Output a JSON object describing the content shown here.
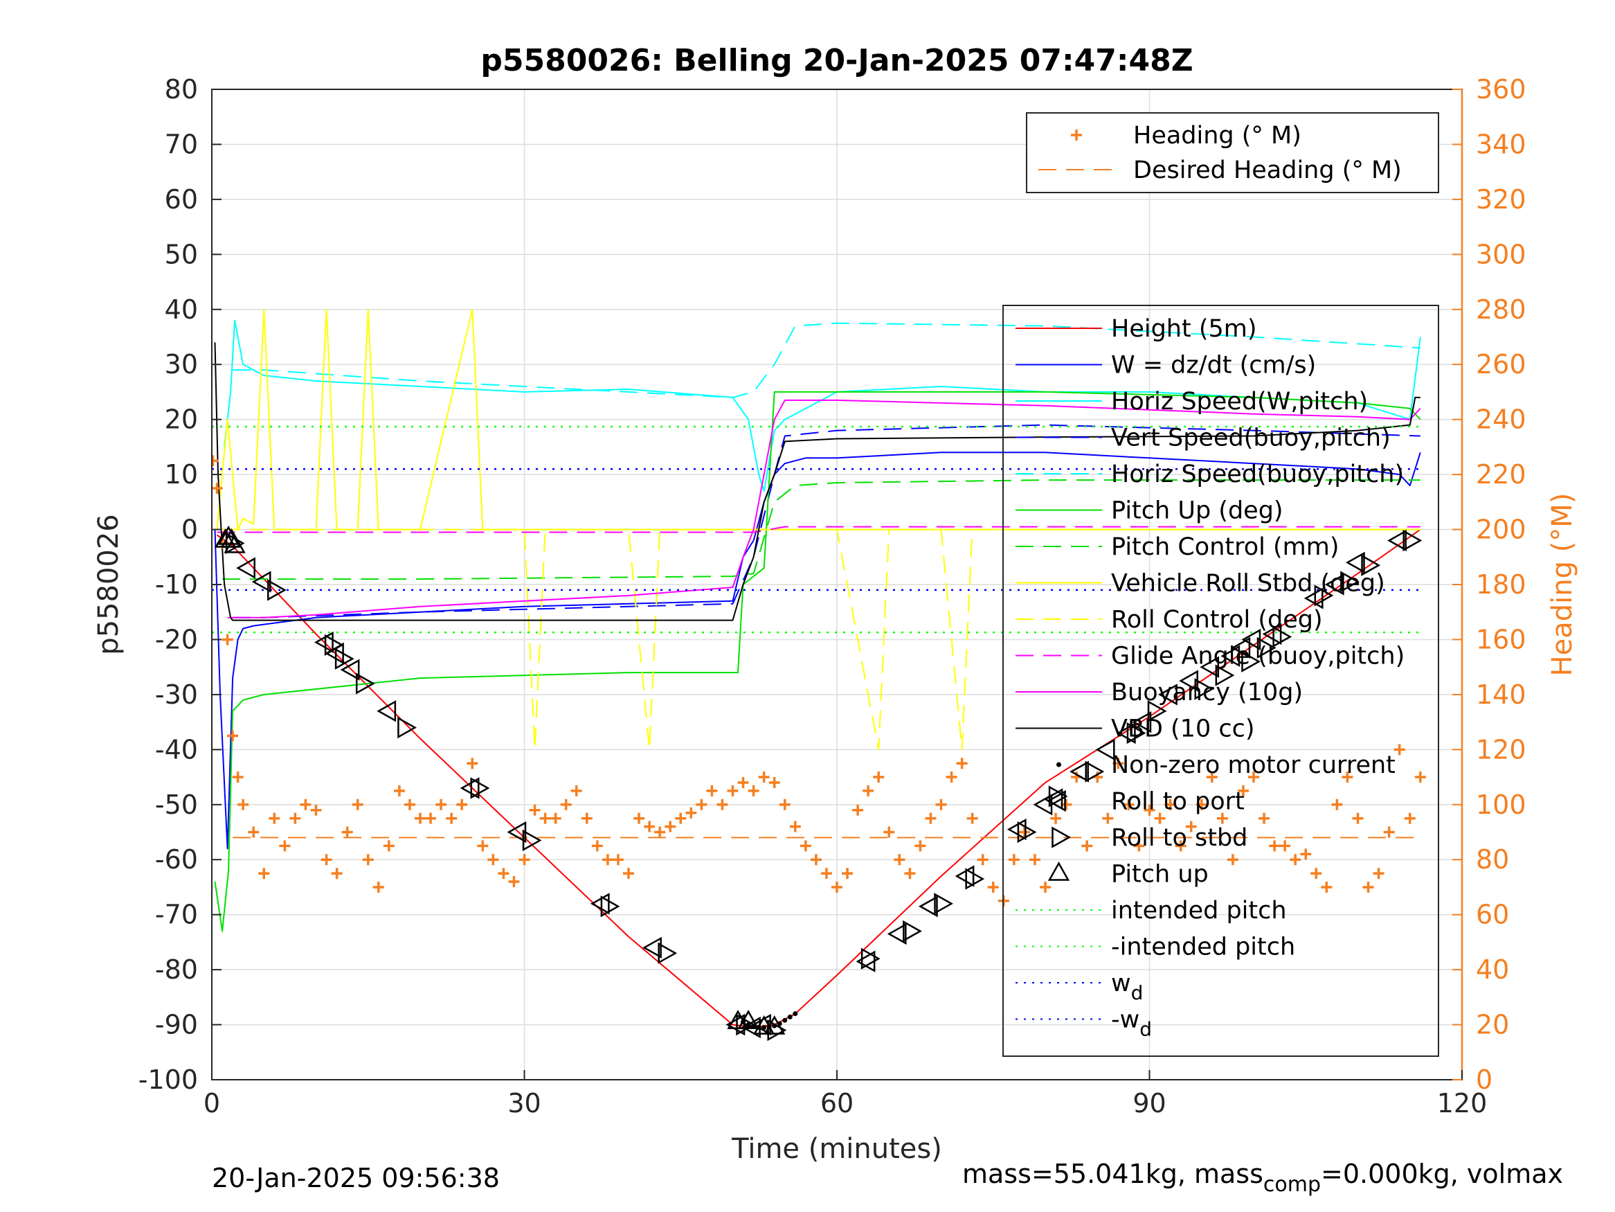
{
  "chart_data": {
    "type": "line",
    "title": "p5580026: Belling 20-Jan-2025 07:47:48Z",
    "xlabel": "Time (minutes)",
    "ylabel": "p5580026",
    "ylabel_right": "Heading (°M)",
    "xlim": [
      0,
      120
    ],
    "ylim": [
      -100,
      80
    ],
    "ylim_right": [
      0,
      360
    ],
    "xticks": [
      "0",
      "30",
      "60",
      "90",
      "120"
    ],
    "yticks": [
      "80",
      "70",
      "60",
      "50",
      "40",
      "30",
      "20",
      "10",
      "0",
      "-10",
      "-20",
      "-30",
      "-40",
      "-50",
      "-60",
      "-70",
      "-80",
      "-90",
      "-100"
    ],
    "yticks_right": [
      "360",
      "340",
      "320",
      "300",
      "280",
      "260",
      "240",
      "220",
      "200",
      "180",
      "160",
      "140",
      "120",
      "100",
      "80",
      "60",
      "40",
      "20",
      "0"
    ],
    "grid": true,
    "legend_heading": [
      {
        "label": "Heading (° M)",
        "color": "#f57f20",
        "style": "plus"
      },
      {
        "label": "Desired Heading (° M)",
        "color": "#f57f20",
        "style": "dashed"
      }
    ],
    "legend_main": [
      {
        "label": "Height (5m)",
        "color": "#ff0000",
        "style": "solid"
      },
      {
        "label": "W = dz/dt (cm/s)",
        "color": "#0000ff",
        "style": "solid"
      },
      {
        "label": "Horiz Speed(W,pitch)",
        "color": "#00ffff",
        "style": "solid"
      },
      {
        "label": "Vert Speed(buoy,pitch)",
        "color": "#0000ff",
        "style": "dashed"
      },
      {
        "label": "Horiz Speed(buoy,pitch)",
        "color": "#00ffff",
        "style": "dashed"
      },
      {
        "label": "Pitch Up (deg)",
        "color": "#00e000",
        "style": "solid"
      },
      {
        "label": "Pitch Control (mm)",
        "color": "#00e000",
        "style": "dashed"
      },
      {
        "label": "Vehicle Roll Stbd (deg)",
        "color": "#ffff00",
        "style": "solid"
      },
      {
        "label": "Roll Control (deg)",
        "color": "#ffff00",
        "style": "dashed"
      },
      {
        "label": "Glide Angle (buoy,pitch)",
        "color": "#ff00ff",
        "style": "dashed"
      },
      {
        "label": "Buoyancy (10g)",
        "color": "#ff00ff",
        "style": "solid"
      },
      {
        "label": "VBD (10 cc)",
        "color": "#000000",
        "style": "solid"
      },
      {
        "label": "Non-zero motor current",
        "color": "#000000",
        "style": "dot"
      },
      {
        "label": "Roll to port",
        "color": "#000000",
        "style": "tri-left"
      },
      {
        "label": "Roll to stbd",
        "color": "#000000",
        "style": "tri-right"
      },
      {
        "label": "Pitch up",
        "color": "#000000",
        "style": "tri-up"
      },
      {
        "label": "intended pitch",
        "color": "#00ff00",
        "style": "dotted"
      },
      {
        "label": "-intended pitch",
        "color": "#00ff00",
        "style": "dotted"
      },
      {
        "label": "w",
        "sub": "d",
        "color": "#0000ff",
        "style": "dotted"
      },
      {
        "label": "-w",
        "sub": "d",
        "color": "#0000ff",
        "style": "dotted"
      }
    ],
    "series": [
      {
        "name": "Height (5m)",
        "axis": "left",
        "color": "#ff0000",
        "style": "solid",
        "x": [
          0.5,
          2,
          5,
          10,
          20,
          30,
          40,
          50,
          52,
          54,
          56,
          60,
          70,
          80,
          90,
          100,
          110,
          116
        ],
        "y": [
          -1,
          -3,
          -9,
          -19,
          -38,
          -56,
          -74,
          -90,
          -90.5,
          -90,
          -88,
          -81,
          -63,
          -46,
          -34,
          -21,
          -8,
          0
        ]
      },
      {
        "name": "W = dz/dt (cm/s)",
        "axis": "left",
        "color": "#0000ff",
        "style": "solid",
        "x": [
          0.3,
          0.8,
          1.5,
          2.0,
          2.5,
          3,
          4,
          6,
          10,
          20,
          30,
          40,
          50,
          51,
          52,
          53,
          54,
          55,
          57,
          60,
          70,
          80,
          90,
          100,
          110,
          114,
          115,
          116
        ],
        "y": [
          0,
          -30,
          -58,
          -27,
          -20,
          -18,
          -17.5,
          -17,
          -16,
          -15,
          -14,
          -13.5,
          -13,
          -5,
          -2,
          5,
          10,
          12,
          13,
          13,
          14,
          14,
          13,
          12,
          11,
          10,
          8,
          14
        ]
      },
      {
        "name": "Horiz Speed(W,pitch)",
        "axis": "left",
        "color": "#00ffff",
        "style": "solid",
        "x": [
          1.2,
          1.8,
          2.2,
          3,
          5,
          10,
          20,
          30,
          40,
          50,
          51.5,
          52.5,
          53,
          54,
          55,
          60,
          70,
          80,
          90,
          100,
          110,
          115,
          116
        ],
        "y": [
          15,
          25,
          38,
          30,
          28,
          27,
          26,
          25,
          25.5,
          24,
          20,
          10,
          7,
          18,
          20,
          25,
          26,
          25,
          25,
          24,
          23,
          20,
          35
        ]
      },
      {
        "name": "Vert Speed(buoy,pitch)",
        "axis": "left",
        "color": "#0000ff",
        "style": "dashed",
        "x": [
          2,
          5,
          20,
          50,
          52,
          54,
          55,
          60,
          80,
          100,
          116
        ],
        "y": [
          -16,
          -16,
          -15,
          -13.5,
          -5,
          10,
          17,
          18,
          19,
          18,
          17
        ]
      },
      {
        "name": "Horiz Speed(buoy,pitch)",
        "axis": "left",
        "color": "#00ffff",
        "style": "dashed",
        "x": [
          2,
          5,
          20,
          50,
          52,
          54,
          56,
          60,
          80,
          100,
          116
        ],
        "y": [
          29,
          29,
          27,
          24,
          25,
          30,
          37,
          37.5,
          37,
          35,
          33
        ]
      },
      {
        "name": "Pitch Up (deg)",
        "axis": "left",
        "color": "#00e000",
        "style": "solid",
        "x": [
          0.3,
          1,
          1.6,
          2,
          3,
          5,
          20,
          40,
          50.5,
          51,
          53,
          54,
          60,
          80,
          100,
          110,
          115,
          116
        ],
        "y": [
          -64,
          -73,
          -62,
          -33,
          -31,
          -30,
          -27,
          -26,
          -26,
          -10,
          -7,
          25,
          25,
          25,
          24,
          23,
          22,
          20
        ]
      },
      {
        "name": "Pitch Control (mm)",
        "axis": "left",
        "color": "#00e000",
        "style": "dashed",
        "x": [
          1,
          5,
          20,
          50,
          52,
          54,
          56,
          60,
          80,
          100,
          116
        ],
        "y": [
          -9,
          -9,
          -9,
          -8.5,
          -8,
          5,
          8,
          8.5,
          9,
          9,
          9
        ]
      },
      {
        "name": "Vehicle Roll Stbd (deg)",
        "axis": "left",
        "color": "#ffff00",
        "style": "solid",
        "x": [
          0.5,
          1.5,
          2,
          2.5,
          3,
          4,
          5,
          6,
          10,
          11,
          12,
          14,
          15,
          16,
          17,
          20,
          25,
          26,
          27,
          30,
          40,
          50,
          60,
          70,
          80,
          90,
          100,
          110,
          116
        ],
        "y": [
          0,
          20,
          10,
          0,
          2,
          1,
          40,
          0,
          0,
          40,
          0,
          0,
          40,
          0,
          0,
          0,
          40,
          0,
          0,
          0,
          0,
          0,
          0,
          0,
          0,
          0,
          0,
          0,
          0
        ]
      },
      {
        "name": "Roll Control (deg)",
        "axis": "left",
        "color": "#ffff00",
        "style": "dashed",
        "x": [
          1,
          20,
          30,
          31,
          32,
          40,
          42,
          43,
          50,
          60,
          64,
          65,
          70,
          72,
          73,
          80,
          100,
          116
        ],
        "y": [
          0,
          0,
          0,
          -40,
          0,
          0,
          -40,
          0,
          0,
          0,
          -40,
          0,
          0,
          -40,
          0,
          0,
          0,
          0
        ]
      },
      {
        "name": "Glide Angle (buoy,pitch)",
        "axis": "left",
        "color": "#ff00ff",
        "style": "dashed",
        "x": [
          0.5,
          50,
          52,
          55,
          60,
          116
        ],
        "y": [
          -0.5,
          -0.5,
          -0.5,
          0.5,
          0.5,
          0.5
        ]
      },
      {
        "name": "Buoyancy (10g)",
        "axis": "left",
        "color": "#ff00ff",
        "style": "solid",
        "x": [
          1.5,
          5,
          10,
          20,
          30,
          40,
          50,
          51,
          52,
          53,
          54,
          55,
          60,
          80,
          100,
          110,
          115,
          116
        ],
        "y": [
          -16,
          -16,
          -15.5,
          -14,
          -13,
          -12,
          -10.5,
          -5,
          0,
          10,
          20,
          23.5,
          23.5,
          22.5,
          21,
          20.5,
          20,
          22
        ]
      },
      {
        "name": "VBD (10 cc)",
        "axis": "left",
        "color": "#000000",
        "style": "solid",
        "x": [
          0.3,
          0.6,
          1.2,
          1.8,
          2,
          10,
          30,
          40,
          50,
          51,
          52,
          53,
          54,
          55,
          60,
          80,
          100,
          110,
          115,
          115.5,
          116
        ],
        "y": [
          34,
          10,
          -10,
          -16,
          -16.5,
          -16.5,
          -16.5,
          -16.5,
          -16.5,
          -10,
          -5,
          5,
          10,
          16,
          16.5,
          16.8,
          17,
          18,
          19,
          24,
          24
        ]
      },
      {
        "name": "intended pitch",
        "axis": "left",
        "color": "#00ff00",
        "style": "dotted",
        "x": [
          0,
          116
        ],
        "y": [
          18.7,
          18.7
        ]
      },
      {
        "name": "-intended pitch",
        "axis": "left",
        "color": "#00ff00",
        "style": "dotted",
        "x": [
          0,
          116
        ],
        "y": [
          -18.7,
          -18.7
        ]
      },
      {
        "name": "w_d",
        "axis": "left",
        "color": "#0000ff",
        "style": "dotted",
        "x": [
          0,
          116
        ],
        "y": [
          11,
          11
        ]
      },
      {
        "name": "-w_d",
        "axis": "left",
        "color": "#0000ff",
        "style": "dotted",
        "x": [
          0,
          116
        ],
        "y": [
          -11,
          -11
        ]
      },
      {
        "name": "Desired Heading (° M)",
        "axis": "right",
        "color": "#f57f20",
        "style": "dashed",
        "x": [
          2,
          116
        ],
        "y": [
          88,
          88
        ]
      },
      {
        "name": "Heading (° M)",
        "axis": "right",
        "color": "#f57f20",
        "style": "plus",
        "x": [
          0.1,
          0.5,
          1,
          1.5,
          2,
          2.5,
          3,
          4,
          5,
          6,
          7,
          8,
          9,
          10,
          11,
          12,
          13,
          14,
          15,
          16,
          17,
          18,
          19,
          20,
          21,
          22,
          23,
          24,
          25,
          26,
          27,
          28,
          29,
          30,
          31,
          32,
          33,
          34,
          35,
          36,
          37,
          38,
          39,
          40,
          41,
          42,
          43,
          44,
          45,
          46,
          47,
          48,
          49,
          50,
          51,
          52,
          53,
          54,
          55,
          56,
          57,
          58,
          59,
          60,
          61,
          62,
          63,
          64,
          65,
          66,
          67,
          68,
          69,
          70,
          71,
          72,
          73,
          74,
          75,
          76,
          77,
          78,
          79,
          80,
          81,
          82,
          83,
          84,
          85,
          86,
          87,
          88,
          89,
          90,
          91,
          92,
          93,
          94,
          95,
          96,
          97,
          98,
          99,
          100,
          101,
          102,
          103,
          104,
          105,
          106,
          107,
          108,
          109,
          110,
          111,
          112,
          113,
          114,
          115,
          116
        ],
        "y": [
          225,
          215,
          195,
          160,
          125,
          110,
          100,
          90,
          75,
          95,
          85,
          95,
          100,
          98,
          80,
          75,
          90,
          100,
          80,
          70,
          85,
          105,
          100,
          95,
          95,
          100,
          95,
          100,
          115,
          85,
          80,
          75,
          72,
          80,
          98,
          95,
          95,
          100,
          105,
          95,
          85,
          80,
          80,
          75,
          95,
          92,
          90,
          92,
          95,
          97,
          100,
          105,
          100,
          105,
          108,
          105,
          110,
          108,
          100,
          92,
          85,
          80,
          75,
          70,
          75,
          98,
          105,
          110,
          90,
          80,
          75,
          85,
          95,
          100,
          110,
          115,
          95,
          80,
          70,
          65,
          80,
          90,
          80,
          70,
          95,
          100,
          110,
          85,
          110,
          95,
          115,
          100,
          85,
          98,
          95,
          100,
          85,
          92,
          100,
          110,
          95,
          80,
          105,
          110,
          95,
          85,
          85,
          80,
          82,
          75,
          70,
          100,
          110,
          95,
          70,
          75,
          90,
          120,
          95,
          110
        ]
      }
    ],
    "markers": [
      {
        "name": "Pitch up",
        "style": "tri-up",
        "x": [
          1.3,
          1.6,
          1.9,
          2.2,
          50.5,
          51.5,
          53,
          54
        ],
        "y": [
          -2,
          -1.5,
          -2,
          -3,
          -89.5,
          -89.5,
          -90.5,
          -90.5
        ]
      },
      {
        "name": "Roll to port",
        "style": "tri-left",
        "x": [
          3.5,
          5,
          11,
          12,
          13.5,
          17,
          25,
          29.5,
          37.5,
          42.5,
          50.5,
          52,
          53,
          63,
          66,
          69,
          72.5,
          77.5,
          80,
          81,
          83.5,
          86,
          88,
          89.5,
          92,
          94,
          96,
          98,
          99,
          100,
          102,
          106,
          108,
          110,
          114
        ],
        "y": [
          -7,
          -9.5,
          -20.5,
          -22.5,
          -25.5,
          -33,
          -47,
          -55,
          -68,
          -76,
          -90,
          -90.5,
          -90,
          -78.5,
          -73.5,
          -68.5,
          -63,
          -54.5,
          -50,
          -49,
          -44,
          -40,
          -37,
          -35,
          -30,
          -27.5,
          -25,
          -23,
          -21.5,
          -20,
          -19,
          -12.5,
          -10,
          -6,
          -2
        ]
      },
      {
        "name": "Roll to stbd",
        "style": "tri-right",
        "x": [
          2,
          6,
          11.5,
          12.5,
          14.5,
          18.5,
          25.5,
          30.5,
          38,
          43.5,
          51,
          54,
          63,
          67,
          70,
          73,
          78,
          81,
          84.5,
          88.5,
          90.5,
          95,
          97,
          99.5,
          101,
          102.5,
          106.5,
          109,
          111,
          115
        ],
        "y": [
          -2.5,
          -11,
          -21,
          -23.5,
          -28,
          -36,
          -47,
          -56.5,
          -68.5,
          -77,
          -90,
          -91,
          -78,
          -73,
          -68,
          -63.5,
          -55,
          -48.5,
          -44,
          -37,
          -33,
          -29,
          -26.5,
          -24,
          -21.5,
          -19.5,
          -12,
          -9.5,
          -6.5,
          -2
        ]
      },
      {
        "name": "Non-zero motor current",
        "style": "dot",
        "x": [
          51,
          51.5,
          52,
          52.5,
          53,
          53.5,
          54,
          54.5,
          55,
          55.5,
          56
        ],
        "y": [
          -89.5,
          -90,
          -90.3,
          -90.5,
          -90.5,
          -90.4,
          -90.2,
          -89.8,
          -89.2,
          -88.6,
          -88
        ]
      }
    ],
    "footer_left": "20-Jan-2025 09:56:38",
    "footer_right_pre": "mass=55.041kg, mass",
    "footer_right_sub": "comp",
    "footer_right_post": "=0.000kg, volmax"
  }
}
